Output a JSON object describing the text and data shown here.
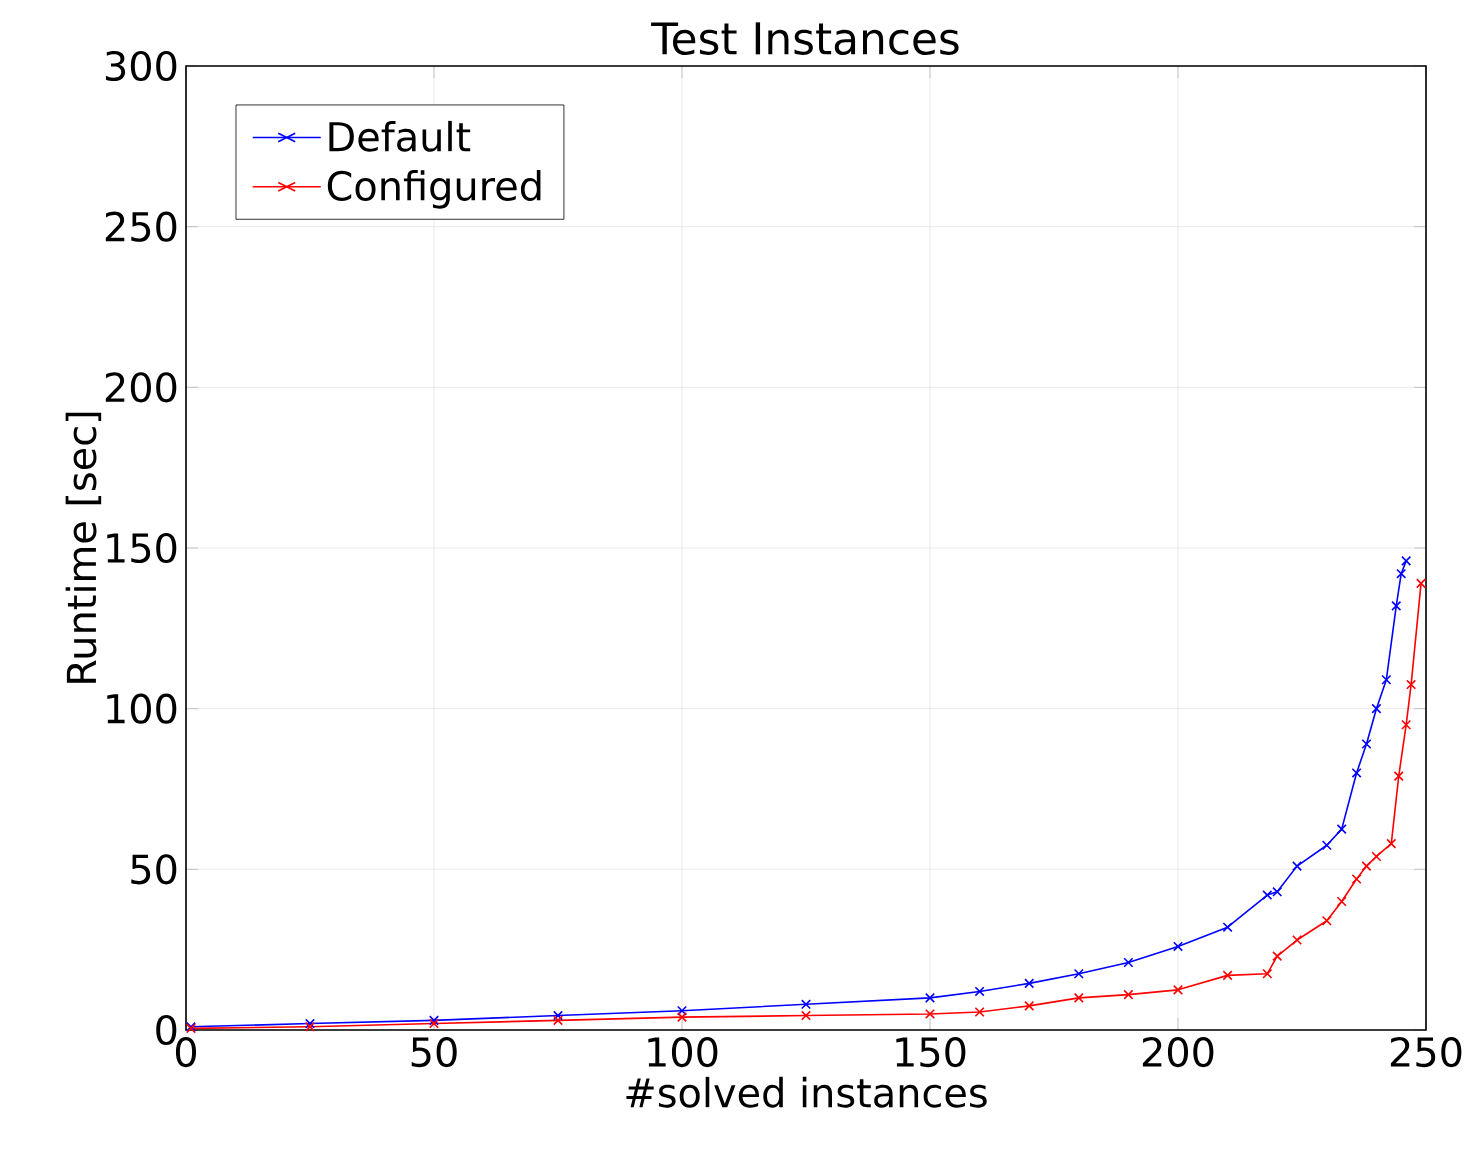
{
  "chart_data": {
    "type": "line",
    "title": "Test Instances",
    "xlabel": "#solved instances",
    "ylabel": "Runtime [sec]",
    "xlim": [
      0,
      250
    ],
    "ylim": [
      0,
      300
    ],
    "xticks": [
      0,
      50,
      100,
      150,
      200,
      250
    ],
    "yticks": [
      0,
      50,
      100,
      150,
      200,
      250,
      300
    ],
    "grid": true,
    "legend": "top left",
    "marker": "cross",
    "line_style": "solid",
    "series": [
      {
        "name": "Default",
        "color": "#0000ff",
        "x": [
          1,
          25,
          50,
          75,
          100,
          125,
          150,
          160,
          170,
          180,
          190,
          200,
          210,
          218,
          220,
          224,
          230,
          233,
          236,
          238,
          240,
          242,
          244,
          245,
          246
        ],
        "values": [
          1,
          2,
          3,
          4.5,
          6,
          8,
          10,
          12,
          14.5,
          17.5,
          21,
          26,
          32,
          42,
          43,
          51,
          57.5,
          62.5,
          80,
          89,
          100,
          109,
          132,
          142,
          146
        ]
      },
      {
        "name": "Configured",
        "color": "#ff0000",
        "x": [
          1,
          25,
          50,
          75,
          100,
          125,
          150,
          160,
          170,
          180,
          190,
          200,
          210,
          218,
          220,
          224,
          230,
          233,
          236,
          238,
          240,
          243,
          244.5,
          246,
          247,
          249
        ],
        "values": [
          0.5,
          1,
          2,
          3,
          4,
          4.5,
          5,
          5.6,
          7.5,
          10,
          11,
          12.5,
          17,
          17.5,
          23,
          28,
          34,
          40,
          47,
          51,
          54,
          58,
          79,
          95,
          107.5,
          139
        ]
      }
    ]
  }
}
